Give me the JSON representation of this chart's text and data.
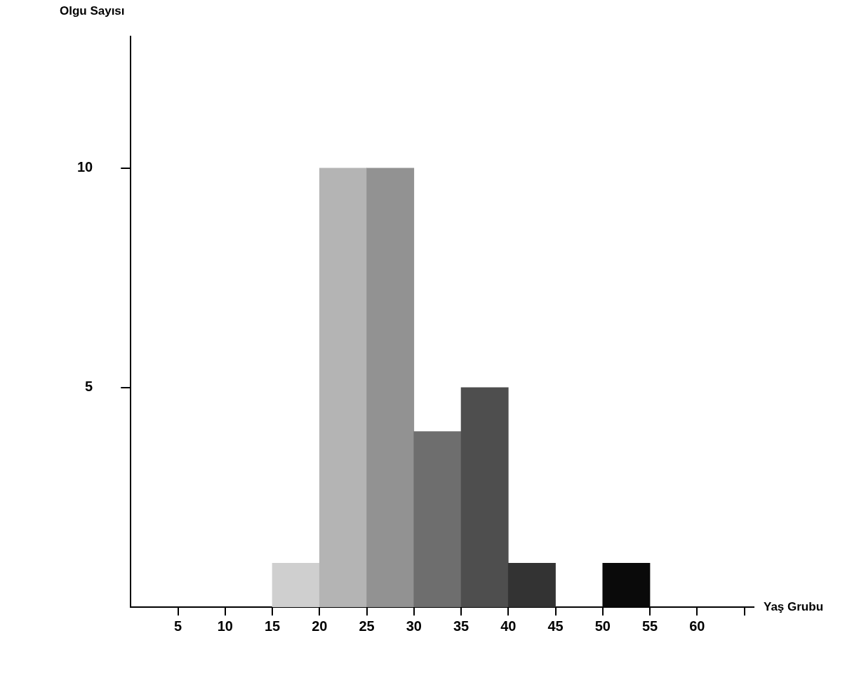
{
  "chart_data": {
    "type": "histogram",
    "xlabel": "Yaş Grubu",
    "ylabel": "Olgu Sayısı",
    "bins": [
      15,
      20,
      25,
      30,
      35,
      40,
      45,
      50,
      55
    ],
    "values": [
      1,
      10,
      10,
      4,
      5,
      1,
      0,
      1
    ],
    "colors": [
      "#cfcfcf",
      "#b4b4b4",
      "#929292",
      "#6e6e6e",
      "#4e4e4e",
      "#333333",
      "#222222",
      "#0a0a0a"
    ],
    "xlim": [
      0,
      66
    ],
    "xticks": [
      5,
      10,
      15,
      20,
      25,
      30,
      35,
      40,
      45,
      50,
      55,
      60,
      {
        "value": 65,
        "label": null
      }
    ],
    "ylim": [
      0,
      13
    ],
    "yticks": [
      5,
      10
    ],
    "grid": false,
    "legend": false
  }
}
